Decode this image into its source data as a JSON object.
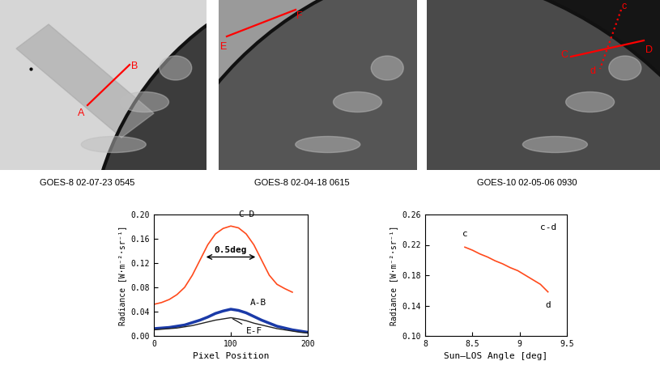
{
  "images": [
    {
      "caption": "GOES-8 02-07-23 0545",
      "lines": [
        {
          "labels": [
            "A",
            "B"
          ],
          "line_style": "solid"
        }
      ]
    },
    {
      "caption": "GOES-8 02-04-18 0615",
      "lines": [
        {
          "labels": [
            "E",
            "F"
          ],
          "line_style": "solid"
        }
      ]
    },
    {
      "caption": "GOES-10 02-05-06 0930",
      "lines": [
        {
          "labels": [
            "C",
            "D"
          ],
          "line_style": "solid"
        },
        {
          "labels": [
            "c",
            "d"
          ],
          "line_style": "dotted"
        }
      ]
    }
  ],
  "chart_data": [
    {
      "type": "line",
      "xlabel": "Pixel Position",
      "ylabel": "Radiance [W·m⁻²·sr⁻¹]",
      "x": [
        0,
        10,
        20,
        30,
        40,
        50,
        60,
        70,
        80,
        90,
        100,
        110,
        120,
        130,
        140,
        150,
        160,
        170,
        180,
        190,
        200
      ],
      "series": [
        {
          "name": "C-D",
          "color": "#ff4a1c",
          "values": [
            0.052,
            0.055,
            0.06,
            0.068,
            0.08,
            0.1,
            0.125,
            0.15,
            0.168,
            0.177,
            0.181,
            0.178,
            0.168,
            0.15,
            0.125,
            0.1,
            0.085,
            0.078,
            0.072,
            null,
            null
          ]
        },
        {
          "name": "A-B",
          "color": "#1a3aa8",
          "values": [
            0.012,
            0.013,
            0.014,
            0.016,
            0.018,
            0.022,
            0.026,
            0.031,
            0.037,
            0.041,
            0.044,
            0.042,
            0.038,
            0.032,
            0.026,
            0.021,
            0.016,
            0.013,
            0.01,
            0.008,
            0.006
          ]
        },
        {
          "name": "E-F",
          "color": "#222222",
          "values": [
            0.01,
            0.011,
            0.012,
            0.013,
            0.015,
            0.017,
            0.02,
            0.023,
            0.026,
            0.028,
            0.03,
            0.028,
            0.025,
            0.021,
            0.018,
            0.015,
            0.012,
            0.01,
            0.008,
            0.006,
            0.005
          ]
        }
      ],
      "annotations": [
        {
          "text": "0.5deg",
          "x_from": 65,
          "x_to": 135,
          "y": 0.13
        }
      ],
      "xlim": [
        0,
        200
      ],
      "xticks": [
        0,
        100,
        200
      ],
      "ylim": [
        0,
        0.2
      ],
      "yticks": [
        {
          "value": 0,
          "label": "0.00"
        },
        {
          "value": 0.04,
          "label": "0.04"
        },
        {
          "value": 0.08,
          "label": "0.08"
        },
        {
          "value": 0.12,
          "label": "0.12"
        },
        {
          "value": 0.16,
          "label": "0.16"
        },
        {
          "value": 0.2,
          "label": "0.20"
        }
      ]
    },
    {
      "type": "line",
      "title": "c-d",
      "xlabel": "Sun—LOS Angle [deg]",
      "ylabel": "Radiance [W·m⁻²·sr⁻¹]",
      "x": [
        8.42,
        8.5,
        8.58,
        8.66,
        8.74,
        8.82,
        8.9,
        8.98,
        9.06,
        9.14,
        9.22,
        9.3
      ],
      "series": [
        {
          "name": "c-d",
          "color": "#ff4a1c",
          "values": [
            0.217,
            0.213,
            0.208,
            0.204,
            0.199,
            0.195,
            0.19,
            0.186,
            0.18,
            0.174,
            0.168,
            0.158
          ]
        }
      ],
      "annotations": [
        {
          "text": "c",
          "x": 8.42,
          "y": 0.217
        },
        {
          "text": "d",
          "x": 9.3,
          "y": 0.158
        }
      ],
      "xlim": [
        8,
        9.5
      ],
      "xticks": [
        8,
        8.5,
        9,
        9.5
      ],
      "ylim": [
        0.1,
        0.26
      ],
      "yticks": [
        {
          "value": 0.1,
          "label": "0.10"
        },
        {
          "value": 0.14,
          "label": "0.14"
        },
        {
          "value": 0.18,
          "label": "0.18"
        },
        {
          "value": 0.22,
          "label": "0.22"
        },
        {
          "value": 0.26,
          "label": "0.26"
        }
      ]
    }
  ]
}
